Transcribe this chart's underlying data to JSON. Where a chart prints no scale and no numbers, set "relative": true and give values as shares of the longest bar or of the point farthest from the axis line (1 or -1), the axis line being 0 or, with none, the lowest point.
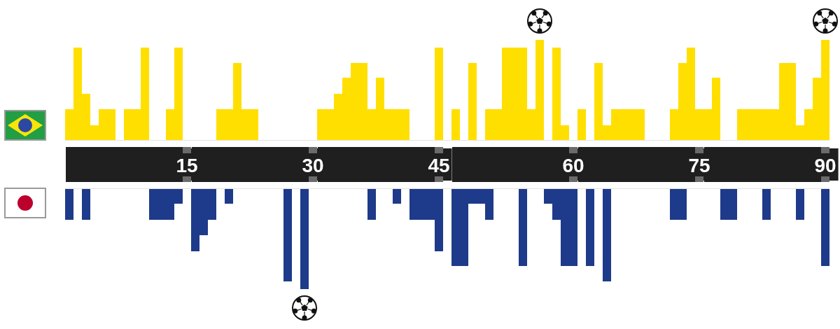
{
  "chart_data": [
    {
      "type": "bar",
      "relative": true,
      "categories": [
        null,
        null,
        null,
        null,
        null,
        null,
        null,
        null,
        null,
        null,
        null,
        null,
        null,
        null,
        "15",
        null,
        null,
        null,
        null,
        null,
        null,
        null,
        null,
        null,
        null,
        null,
        null,
        null,
        null,
        "30",
        null,
        null,
        null,
        null,
        null,
        null,
        null,
        null,
        null,
        null,
        null,
        null,
        null,
        null,
        "45",
        null,
        null,
        null,
        null,
        null,
        null,
        null,
        null,
        null,
        null,
        null,
        null,
        null,
        null,
        null,
        "60",
        null,
        null,
        null,
        null,
        null,
        null,
        null,
        null,
        null,
        null,
        null,
        null,
        null,
        null,
        "75",
        null,
        null,
        null,
        null,
        null,
        null,
        null,
        null,
        null,
        null,
        null,
        null,
        null,
        null,
        "90"
      ],
      "series": [
        {
          "color": "#ffdf00",
          "values": [
            0.31,
            0.92,
            0.46,
            0.15,
            0.31,
            0.31,
            null,
            0.31,
            0.31,
            0.92,
            null,
            null,
            0.31,
            0.92,
            null,
            null,
            null,
            null,
            0.31,
            0.31,
            0.77,
            0.31,
            0.31,
            null,
            null,
            null,
            null,
            null,
            null,
            null,
            0.31,
            0.31,
            0.46,
            0.62,
            0.77,
            0.77,
            0.31,
            0.62,
            0.31,
            0.31,
            0.31,
            null,
            null,
            null,
            0.92,
            null,
            0.31,
            null,
            0.77,
            null,
            0.31,
            0.31,
            0.92,
            0.92,
            0.92,
            0.31,
            1,
            null,
            0.92,
            0.15,
            null,
            0.31,
            null,
            0.77,
            0.15,
            0.31,
            0.31,
            0.31,
            0.31,
            null,
            null,
            null,
            0.31,
            0.77,
            0.92,
            0.31,
            0.31,
            0.62,
            null,
            null,
            0.31,
            0.31,
            0.31,
            0.31,
            0.31,
            0.77,
            0.77,
            0.15,
            0.31,
            0.62,
            1
          ]
        }
      ]
    },
    {
      "type": "bar",
      "relative": true,
      "tick_labels": false,
      "categories": [
        null,
        null,
        null,
        null,
        null,
        null,
        null,
        null,
        null,
        null,
        null,
        null,
        null,
        null,
        "15",
        null,
        null,
        null,
        null,
        null,
        null,
        null,
        null,
        null,
        null,
        null,
        null,
        null,
        null,
        "30",
        null,
        null,
        null,
        null,
        null,
        null,
        null,
        null,
        null,
        null,
        null,
        null,
        null,
        null,
        "45",
        null,
        null,
        null,
        null,
        null,
        null,
        null,
        null,
        null,
        null,
        null,
        null,
        null,
        null,
        null,
        "60",
        null,
        null,
        null,
        null,
        null,
        null,
        null,
        null,
        null,
        null,
        null,
        null,
        null,
        null,
        "75",
        null,
        null,
        null,
        null,
        null,
        null,
        null,
        null,
        null,
        null,
        null,
        null,
        null,
        null,
        "90"
      ],
      "series": [
        {
          "color": "#1e3a8a",
          "values": [
            -0.31,
            null,
            -0.31,
            null,
            null,
            null,
            null,
            null,
            null,
            null,
            -0.31,
            -0.31,
            -0.31,
            -0.15,
            null,
            -0.62,
            -0.46,
            -0.31,
            null,
            -0.15,
            null,
            null,
            null,
            null,
            null,
            null,
            -0.92,
            null,
            -1,
            null,
            null,
            null,
            null,
            null,
            null,
            null,
            -0.31,
            null,
            null,
            -0.15,
            null,
            -0.31,
            -0.31,
            -0.31,
            -0.62,
            null,
            -0.77,
            -0.77,
            -0.15,
            -0.15,
            -0.31,
            null,
            null,
            null,
            -0.77,
            null,
            null,
            -0.15,
            -0.31,
            -0.77,
            -0.77,
            null,
            -0.77,
            null,
            -0.92,
            null,
            null,
            null,
            null,
            null,
            null,
            null,
            -0.31,
            -0.31,
            null,
            null,
            null,
            null,
            -0.31,
            -0.31,
            null,
            null,
            null,
            -0.31,
            null,
            null,
            null,
            -0.31,
            null,
            null,
            -0.77
          ]
        }
      ]
    }
  ]
}
